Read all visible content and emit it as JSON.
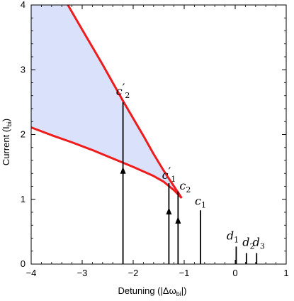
{
  "chart_data": {
    "type": "line",
    "xlabel_main": "Detuning (|Δω",
    "xlabel_sub": "bi",
    "xlabel_tail": "|)",
    "ylabel_main": "Current (I",
    "ylabel_sub": "bi",
    "ylabel_tail": ")",
    "xlim": [
      -4,
      1
    ],
    "ylim": [
      0,
      4
    ],
    "x_ticks": [
      -4,
      -3,
      -2,
      -1,
      0,
      1
    ],
    "x_tick_labels": [
      "−4",
      "−3",
      "−2",
      "−1",
      "0",
      "1"
    ],
    "y_ticks": [
      0,
      1,
      2,
      3,
      4
    ],
    "y_tick_labels": [
      "0",
      "1",
      "2",
      "3",
      "4"
    ],
    "grid": false,
    "colors": {
      "curve": "#ee1c1c",
      "fill": "#d9e1fb",
      "marker": "#000000"
    },
    "upper_curve": {
      "x": [
        -3.28,
        -3.0,
        -2.8,
        -2.6,
        -2.4,
        -2.2,
        -2.0,
        -1.8,
        -1.6,
        -1.4,
        -1.2,
        -1.05
      ],
      "y": [
        4.0,
        3.62,
        3.35,
        3.08,
        2.8,
        2.52,
        2.25,
        1.98,
        1.7,
        1.44,
        1.2,
        1.02
      ]
    },
    "lower_curve": {
      "x": [
        -4.0,
        -3.6,
        -3.2,
        -2.8,
        -2.4,
        -2.0,
        -1.6,
        -1.4,
        -1.2,
        -1.05
      ],
      "y": [
        2.11,
        1.99,
        1.88,
        1.76,
        1.63,
        1.5,
        1.36,
        1.27,
        1.14,
        1.02
      ]
    },
    "region": {
      "upper": {
        "x": [
          -4.0,
          -3.28,
          -3.0,
          -2.8,
          -2.6,
          -2.4,
          -2.2,
          -2.0,
          -1.8,
          -1.6,
          -1.4,
          -1.2,
          -1.05
        ],
        "y": [
          4.0,
          4.0,
          3.62,
          3.35,
          3.08,
          2.8,
          2.52,
          2.25,
          1.98,
          1.7,
          1.44,
          1.2,
          1.02
        ]
      },
      "lower": {
        "x": [
          -4.0,
          -3.6,
          -3.2,
          -2.8,
          -2.4,
          -2.0,
          -1.6,
          -1.4,
          -1.2,
          -1.05
        ],
        "y": [
          2.11,
          1.99,
          1.88,
          1.76,
          1.63,
          1.5,
          1.36,
          1.27,
          1.14,
          1.02
        ]
      }
    },
    "vertical_lines": [
      {
        "id": "c2p",
        "x": -2.2,
        "y_top": 2.5,
        "arrow_y": 1.45
      },
      {
        "id": "c1p",
        "x": -1.3,
        "y_top": 1.25,
        "arrow_y": 0.82
      },
      {
        "id": "c2",
        "x": -1.12,
        "y_top": 1.12,
        "arrow_y": 0.68
      },
      {
        "id": "c1",
        "x": -0.68,
        "y_top": 0.83
      },
      {
        "id": "d1",
        "x": 0.02,
        "y_top": 0.27
      },
      {
        "id": "d2",
        "x": 0.22,
        "y_top": 0.17
      },
      {
        "id": "d3",
        "x": 0.42,
        "y_top": 0.17
      }
    ],
    "annotations": [
      {
        "id": "c2p",
        "letter": "c",
        "sub": "2",
        "prime": "′"
      },
      {
        "id": "c1p",
        "letter": "c",
        "sub": "1",
        "prime": "′"
      },
      {
        "id": "c2",
        "letter": "c",
        "sub": "2",
        "prime": ""
      },
      {
        "id": "c1",
        "letter": "c",
        "sub": "1",
        "prime": ""
      },
      {
        "id": "d1",
        "letter": "d",
        "sub": "1",
        "prime": ""
      },
      {
        "id": "d2",
        "letter": "d",
        "sub": "2",
        "prime": ""
      },
      {
        "id": "d3",
        "letter": "d",
        "sub": "3",
        "prime": ""
      }
    ]
  }
}
